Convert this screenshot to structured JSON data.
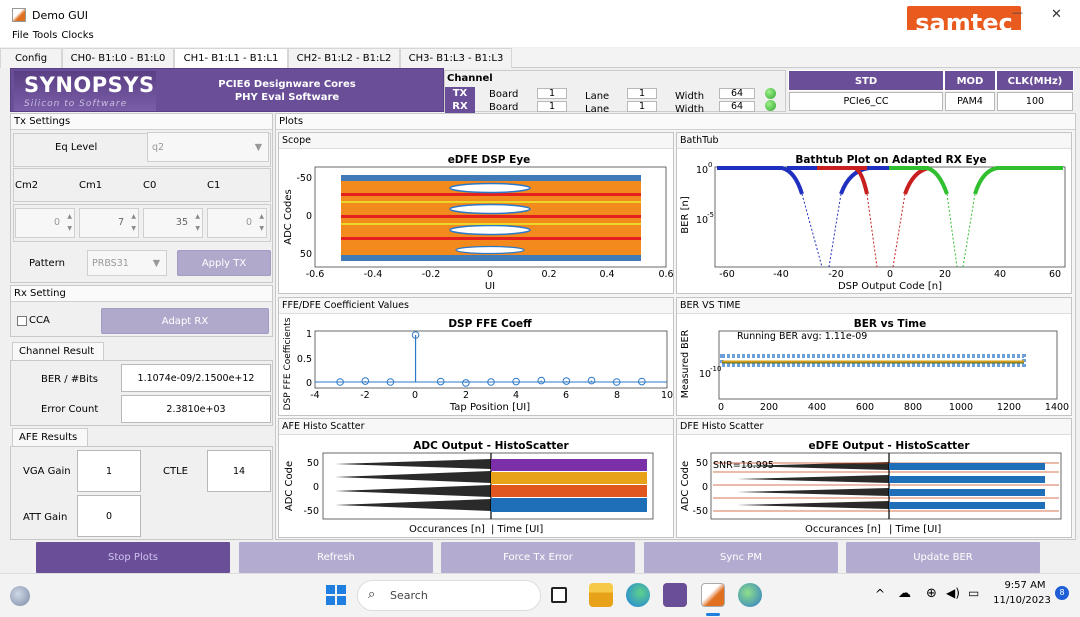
{
  "window": {
    "title": "Demo GUI",
    "minimize_glyph": "—",
    "close_glyph": "✕",
    "icon": "matlab-icon"
  },
  "menu": [
    "File",
    "Tools",
    "Clocks"
  ],
  "logo_samtec": "samtec",
  "tabs": [
    "Config",
    "CH0- B1:L0 - B1:L0",
    "CH1- B1:L1 - B1:L1",
    "CH2- B1:L2 - B1:L2",
    "CH3- B1:L3 - B1:L3"
  ],
  "active_tab": 2,
  "banner": {
    "brand": "SYNOPSYS",
    "tagline": "Silicon to Software",
    "line1": "PCIE6 Designware Cores",
    "line2": "PHY Eval Software"
  },
  "channel": {
    "title": "Channel",
    "rows": [
      {
        "dir": "TX",
        "board_label": "Board",
        "board": "1",
        "lane_label": "Lane",
        "lane": "1",
        "width_label": "Width",
        "width": "64"
      },
      {
        "dir": "RX",
        "board_label": "Board",
        "board": "1",
        "lane_label": "Lane",
        "lane": "1",
        "width_label": "Width",
        "width": "64"
      }
    ],
    "status_color": "#3fbf2f"
  },
  "std": {
    "headers": [
      "STD",
      "MOD",
      "CLK(MHz)"
    ],
    "values": [
      "PCIe6_CC",
      "PAM4",
      "100"
    ]
  },
  "tx_settings": {
    "title": "Tx Settings",
    "eq_label": "Eq Level",
    "eq_value": "q2",
    "coef_labels": [
      "Cm2",
      "Cm1",
      "C0",
      "C1"
    ],
    "coef_values": [
      "0",
      "7",
      "35",
      "0"
    ],
    "pattern_label": "Pattern",
    "pattern_value": "PRBS31",
    "apply_label": "Apply TX"
  },
  "rx_setting": {
    "title": "Rx Setting",
    "cca_label": "CCA",
    "adapt_label": "Adapt RX"
  },
  "channel_result": {
    "tab": "Channel Result",
    "ber_label": "BER / #Bits",
    "ber_value": "1.1074e-09/2.1500e+12",
    "err_label": "Error Count",
    "err_value": "2.3810e+03"
  },
  "afe_results": {
    "tab": "AFE Results",
    "vga_label": "VGA Gain",
    "vga_value": "1",
    "ctle_label": "CTLE",
    "ctle_value": "14",
    "att_label": "ATT Gain",
    "att_value": "0"
  },
  "plots_title": "Plots",
  "scope": {
    "panel": "Scope",
    "title": "eDFE DSP Eye",
    "ylabel": "ADC Codes",
    "xlabel": "UI",
    "yticks": [
      "-50",
      "0",
      "50"
    ],
    "xticks": [
      "-0.6",
      "-0.4",
      "-0.2",
      "0",
      "0.2",
      "0.4",
      "0.6"
    ]
  },
  "bathtub": {
    "panel": "BathTub",
    "title": "Bathtub Plot on Adapted RX Eye",
    "ylabel": "BER [n]",
    "xlabel": "DSP Output Code [n]",
    "ytick_base": "10",
    "ytick_exps": [
      "0",
      "-5"
    ],
    "xticks": [
      "-60",
      "-40",
      "-20",
      "0",
      "20",
      "40",
      "60"
    ],
    "series_colors": [
      "#1f2fbf",
      "#c81e1e",
      "#2fbf2f"
    ]
  },
  "ffe": {
    "panel": "FFE/DFE Coefficient Values",
    "title": "DSP FFE Coeff",
    "ylabel": "DSP FFE Coefficients",
    "xlabel": "Tap Position [UI]",
    "yticks": [
      "1",
      "0.5",
      "0"
    ],
    "xticks": [
      "-4",
      "-2",
      "0",
      "2",
      "4",
      "6",
      "8",
      "10"
    ]
  },
  "ber_time": {
    "panel": "BER VS TIME",
    "title": "BER vs Time",
    "ylabel": "Measured BER",
    "xlabel": "",
    "annotation": "Running BER avg: 1.11e-09",
    "ytick_base": "10",
    "ytick_exp": "-10",
    "xticks": [
      "0",
      "200",
      "400",
      "600",
      "800",
      "1000",
      "1200",
      "1400"
    ]
  },
  "afe_histo": {
    "panel": "AFE Histo Scatter",
    "title": "ADC Output - HistoScatter",
    "ylabel": "ADC Code",
    "xlabel_left": "Occurances [n]",
    "xlabel_right": "| Time [UI]",
    "yticks": [
      "50",
      "0",
      "-50"
    ],
    "level_colors": [
      "#7b2fa8",
      "#e8a21a",
      "#e0561e",
      "#1f6fb8"
    ]
  },
  "dfe_histo": {
    "panel": "DFE Histo Scatter",
    "title": "eDFE Output - HistoScatter",
    "ylabel": "ADC Code",
    "xlabel_left": "Occurances [n]",
    "xlabel_right": "| Time [UI]",
    "yticks": [
      "50",
      "0",
      "-50"
    ],
    "annotation": "SNR=16.995"
  },
  "bottom_buttons": [
    "Stop Plots",
    "Refresh",
    "Force Tx Error",
    "Sync PM",
    "Update BER"
  ],
  "taskbar": {
    "search_placeholder": "Search",
    "time": "9:57 AM",
    "date": "11/10/2023",
    "notif_count": "8",
    "chevron": "^"
  }
}
